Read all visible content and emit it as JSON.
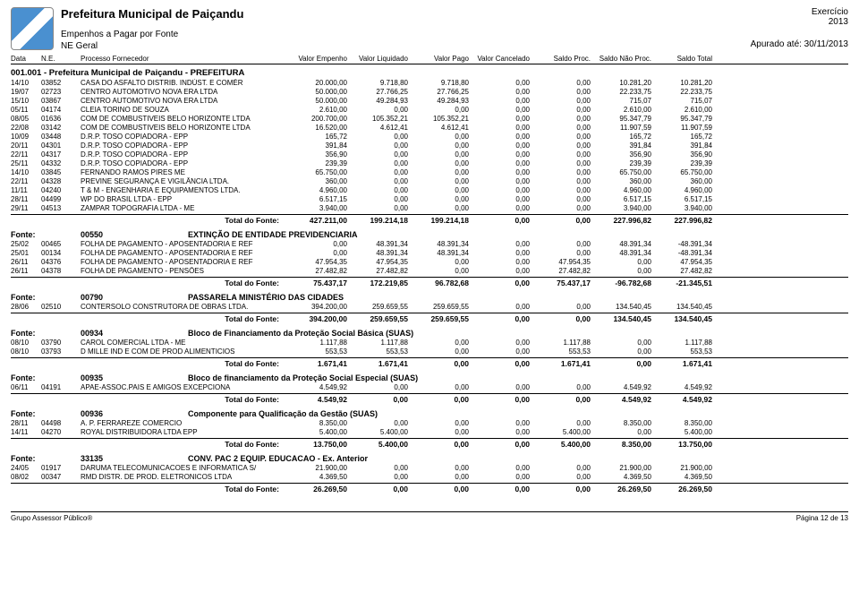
{
  "header": {
    "prefeitura": "Prefeitura Municipal de Paiçandu",
    "sub1": "Empenhos a Pagar por Fonte",
    "sub2": "NE Geral",
    "exercicio_label": "Exercício",
    "exercicio_year": "2013",
    "apurado": "Apurado até: 30/11/2013"
  },
  "columns": [
    "Data",
    "N.E.",
    "Processo  Fornecedor",
    "Valor Empenho",
    "Valor Liquidado",
    "Valor Pago",
    "Valor Cancelado",
    "Saldo Proc.",
    "Saldo Não Proc.",
    "Saldo Total"
  ],
  "section1_title": "001.001 - Prefeitura Municipal de Paiçandu - PREFEITURA",
  "section1_rows": [
    {
      "d": "14/10",
      "ne": "03852",
      "f": "CASA DO ASFALTO DISTRIB. INDÚST. E COMÉR",
      "c": [
        "20.000,00",
        "9.718,80",
        "9.718,80",
        "0,00",
        "0,00",
        "10.281,20",
        "10.281,20"
      ]
    },
    {
      "d": "19/07",
      "ne": "02723",
      "f": "CENTRO AUTOMOTIVO NOVA ERA LTDA",
      "c": [
        "50.000,00",
        "27.766,25",
        "27.766,25",
        "0,00",
        "0,00",
        "22.233,75",
        "22.233,75"
      ]
    },
    {
      "d": "15/10",
      "ne": "03867",
      "f": "CENTRO AUTOMOTIVO NOVA ERA LTDA",
      "c": [
        "50.000,00",
        "49.284,93",
        "49.284,93",
        "0,00",
        "0,00",
        "715,07",
        "715,07"
      ]
    },
    {
      "d": "05/11",
      "ne": "04174",
      "f": "CLEIA TORINO DE SOUZA",
      "c": [
        "2.610,00",
        "0,00",
        "0,00",
        "0,00",
        "0,00",
        "2.610,00",
        "2.610,00"
      ]
    },
    {
      "d": "08/05",
      "ne": "01636",
      "f": "COM DE COMBUSTIVEIS BELO HORIZONTE LTDA",
      "c": [
        "200.700,00",
        "105.352,21",
        "105.352,21",
        "0,00",
        "0,00",
        "95.347,79",
        "95.347,79"
      ]
    },
    {
      "d": "22/08",
      "ne": "03142",
      "f": "COM DE COMBUSTIVEIS BELO HORIZONTE LTDA",
      "c": [
        "16.520,00",
        "4.612,41",
        "4.612,41",
        "0,00",
        "0,00",
        "11.907,59",
        "11.907,59"
      ]
    },
    {
      "d": "10/09",
      "ne": "03448",
      "f": "D.R.P. TOSO COPIADORA - EPP",
      "c": [
        "165,72",
        "0,00",
        "0,00",
        "0,00",
        "0,00",
        "165,72",
        "165,72"
      ]
    },
    {
      "d": "20/11",
      "ne": "04301",
      "f": "D.R.P. TOSO COPIADORA - EPP",
      "c": [
        "391,84",
        "0,00",
        "0,00",
        "0,00",
        "0,00",
        "391,84",
        "391,84"
      ]
    },
    {
      "d": "22/11",
      "ne": "04317",
      "f": "D.R.P. TOSO COPIADORA - EPP",
      "c": [
        "356,90",
        "0,00",
        "0,00",
        "0,00",
        "0,00",
        "356,90",
        "356,90"
      ]
    },
    {
      "d": "25/11",
      "ne": "04332",
      "f": "D.R.P. TOSO COPIADORA - EPP",
      "c": [
        "239,39",
        "0,00",
        "0,00",
        "0,00",
        "0,00",
        "239,39",
        "239,39"
      ]
    },
    {
      "d": "14/10",
      "ne": "03845",
      "f": "FERNANDO RAMOS PIRES ME",
      "c": [
        "65.750,00",
        "0,00",
        "0,00",
        "0,00",
        "0,00",
        "65.750,00",
        "65.750,00"
      ]
    },
    {
      "d": "22/11",
      "ne": "04328",
      "f": "PREVINE SEGURANÇA E VIGILÂNCIA LTDA.",
      "c": [
        "360,00",
        "0,00",
        "0,00",
        "0,00",
        "0,00",
        "360,00",
        "360,00"
      ]
    },
    {
      "d": "11/11",
      "ne": "04240",
      "f": "T & M - ENGENHARIA E EQUIPAMENTOS LTDA.",
      "c": [
        "4.960,00",
        "0,00",
        "0,00",
        "0,00",
        "0,00",
        "4.960,00",
        "4.960,00"
      ]
    },
    {
      "d": "28/11",
      "ne": "04499",
      "f": "WP DO BRASIL LTDA - EPP",
      "c": [
        "6.517,15",
        "0,00",
        "0,00",
        "0,00",
        "0,00",
        "6.517,15",
        "6.517,15"
      ]
    },
    {
      "d": "29/11",
      "ne": "04513",
      "f": "ZAMPAR TOPOGRAFIA LTDA - ME",
      "c": [
        "3.940,00",
        "0,00",
        "0,00",
        "0,00",
        "0,00",
        "3.940,00",
        "3.940,00"
      ]
    }
  ],
  "total_label": "Total do Fonte:",
  "section1_total": [
    "427.211,00",
    "199.214,18",
    "199.214,18",
    "0,00",
    "0,00",
    "227.996,82",
    "227.996,82"
  ],
  "fonte_label": "Fonte:",
  "fontes": [
    {
      "code": "00550",
      "desc": "EXTINÇÃO DE ENTIDADE PREVIDENCIARIA",
      "rows": [
        {
          "d": "25/02",
          "ne": "00465",
          "f": "FOLHA DE PAGAMENTO - APOSENTADORIA E REF",
          "c": [
            "0,00",
            "48.391,34",
            "48.391,34",
            "0,00",
            "0,00",
            "48.391,34",
            "-48.391,34"
          ]
        },
        {
          "d": "25/01",
          "ne": "00134",
          "f": "FOLHA DE PAGAMENTO - APOSENTADORIA E REF",
          "c": [
            "0,00",
            "48.391,34",
            "48.391,34",
            "0,00",
            "0,00",
            "48.391,34",
            "-48.391,34"
          ]
        },
        {
          "d": "26/11",
          "ne": "04376",
          "f": "FOLHA DE PAGAMENTO - APOSENTADORIA E REF",
          "c": [
            "47.954,35",
            "47.954,35",
            "0,00",
            "0,00",
            "47.954,35",
            "0,00",
            "47.954,35"
          ]
        },
        {
          "d": "26/11",
          "ne": "04378",
          "f": "FOLHA DE PAGAMENTO - PENSÕES",
          "c": [
            "27.482,82",
            "27.482,82",
            "0,00",
            "0,00",
            "27.482,82",
            "0,00",
            "27.482,82"
          ]
        }
      ],
      "total": [
        "75.437,17",
        "172.219,85",
        "96.782,68",
        "0,00",
        "75.437,17",
        "-96.782,68",
        "-21.345,51"
      ]
    },
    {
      "code": "00790",
      "desc": "PASSARELA MINISTÉRIO DAS CIDADES",
      "rows": [
        {
          "d": "28/06",
          "ne": "02510",
          "f": "CONTERSOLO CONSTRUTORA DE OBRAS LTDA.",
          "c": [
            "394.200,00",
            "259.659,55",
            "259.659,55",
            "0,00",
            "0,00",
            "134.540,45",
            "134.540,45"
          ]
        }
      ],
      "total": [
        "394.200,00",
        "259.659,55",
        "259.659,55",
        "0,00",
        "0,00",
        "134.540,45",
        "134.540,45"
      ]
    },
    {
      "code": "00934",
      "desc": "Bloco de Financiamento da Proteção Social Básica (SUAS)",
      "rows": [
        {
          "d": "08/10",
          "ne": "03790",
          "f": "CAROL COMERCIAL LTDA - ME",
          "c": [
            "1.117,88",
            "1.117,88",
            "0,00",
            "0,00",
            "1.117,88",
            "0,00",
            "1.117,88"
          ]
        },
        {
          "d": "08/10",
          "ne": "03793",
          "f": "D MILLE IND E COM DE PROD ALIMENTICIOS",
          "c": [
            "553,53",
            "553,53",
            "0,00",
            "0,00",
            "553,53",
            "0,00",
            "553,53"
          ]
        }
      ],
      "total": [
        "1.671,41",
        "1.671,41",
        "0,00",
        "0,00",
        "1.671,41",
        "0,00",
        "1.671,41"
      ]
    },
    {
      "code": "00935",
      "desc": "Bloco de financiamento da Proteção Social Especial (SUAS)",
      "rows": [
        {
          "d": "06/11",
          "ne": "04191",
          "f": "APAE-ASSOC.PAIS E AMIGOS EXCEPCIONA",
          "c": [
            "4.549,92",
            "0,00",
            "0,00",
            "0,00",
            "0,00",
            "4.549,92",
            "4.549,92"
          ]
        }
      ],
      "total": [
        "4.549,92",
        "0,00",
        "0,00",
        "0,00",
        "0,00",
        "4.549,92",
        "4.549,92"
      ]
    },
    {
      "code": "00936",
      "desc": "Componente para Qualificação da Gestão (SUAS)",
      "rows": [
        {
          "d": "28/11",
          "ne": "04498",
          "f": "A. P. FERRAREZE COMERCIO",
          "c": [
            "8.350,00",
            "0,00",
            "0,00",
            "0,00",
            "0,00",
            "8.350,00",
            "8.350,00"
          ]
        },
        {
          "d": "14/11",
          "ne": "04270",
          "f": "ROYAL DISTRIBUIDORA LTDA EPP",
          "c": [
            "5.400,00",
            "5.400,00",
            "0,00",
            "0,00",
            "5.400,00",
            "0,00",
            "5.400,00"
          ]
        }
      ],
      "total": [
        "13.750,00",
        "5.400,00",
        "0,00",
        "0,00",
        "5.400,00",
        "8.350,00",
        "13.750,00"
      ]
    },
    {
      "code": "33135",
      "desc": "CONV. PAC 2 EQUIP. EDUCACAO - Ex. Anterior",
      "rows": [
        {
          "d": "24/05",
          "ne": "01917",
          "f": "DARUMA TELECOMUNICACOES E INFORMATICA S/",
          "c": [
            "21.900,00",
            "0,00",
            "0,00",
            "0,00",
            "0,00",
            "21.900,00",
            "21.900,00"
          ]
        },
        {
          "d": "08/02",
          "ne": "00347",
          "f": "RMD DISTR. DE PROD. ELETRONICOS LTDA",
          "c": [
            "4.369,50",
            "0,00",
            "0,00",
            "0,00",
            "0,00",
            "4.369,50",
            "4.369,50"
          ]
        }
      ],
      "total": [
        "26.269,50",
        "0,00",
        "0,00",
        "0,00",
        "0,00",
        "26.269,50",
        "26.269,50"
      ]
    }
  ],
  "footer": {
    "left": "Grupo Assessor Público®",
    "right": "Página 12 de 13"
  },
  "colors": {
    "text": "#000000",
    "border": "#000000",
    "bg": "#ffffff"
  }
}
